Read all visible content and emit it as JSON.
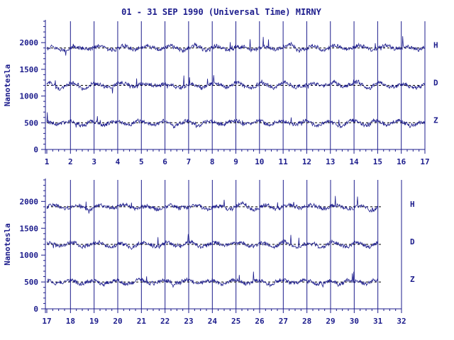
{
  "chart_data": {
    "type": "line",
    "title": "01 - 31 SEP 1990 (Universal Time) MIRNY",
    "ylabel": "Nanotesla",
    "colors": {
      "axis": "#1c1c8c",
      "trace": "#1c1c8c"
    },
    "grid": "vertical day lines",
    "panels": [
      {
        "id": "top",
        "x_range": [
          1,
          17
        ],
        "x_ticks": [
          1,
          2,
          3,
          4,
          5,
          6,
          7,
          8,
          9,
          10,
          11,
          12,
          13,
          14,
          15,
          16,
          17
        ],
        "y_range": [
          0,
          2400
        ],
        "y_ticks": [
          0,
          500,
          1000,
          1500,
          2000
        ],
        "series": [
          {
            "name": "H",
            "baseline": 1900
          },
          {
            "name": "D",
            "baseline": 1200
          },
          {
            "name": "Z",
            "baseline": 500
          }
        ]
      },
      {
        "id": "bottom",
        "x_range": [
          17,
          32
        ],
        "x_ticks": [
          17,
          18,
          19,
          20,
          21,
          22,
          23,
          24,
          25,
          26,
          27,
          28,
          29,
          30,
          31,
          32
        ],
        "y_range": [
          0,
          2400
        ],
        "y_ticks": [
          0,
          500,
          1000,
          1500,
          2000
        ],
        "data_end_day": 31,
        "series": [
          {
            "name": "H",
            "baseline": 1900
          },
          {
            "name": "D",
            "baseline": 1200
          },
          {
            "name": "Z",
            "baseline": 500
          }
        ]
      }
    ]
  }
}
